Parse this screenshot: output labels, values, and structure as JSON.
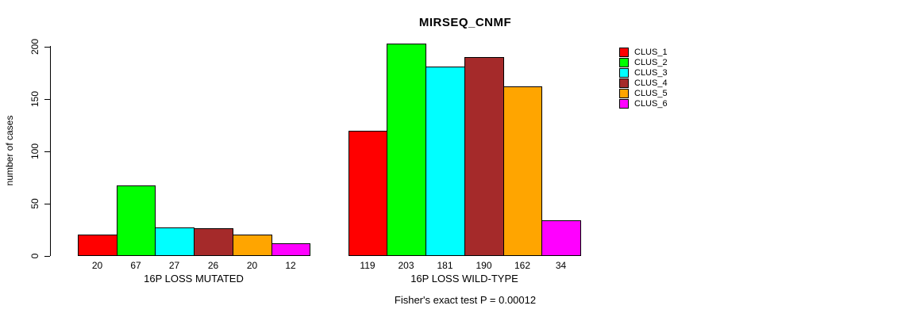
{
  "chart_data": {
    "type": "bar",
    "title": "MIRSEQ_CNMF",
    "ylabel": "number of cases",
    "ylim": [
      0,
      200
    ],
    "yticks": [
      0,
      50,
      100,
      150,
      200
    ],
    "grid": false,
    "legend_position": "top-right",
    "categories": [
      "16P LOSS MUTATED",
      "16P LOSS WILD-TYPE"
    ],
    "series": [
      {
        "name": "CLUS_1",
        "color": "#FF0000",
        "values": [
          20,
          119
        ]
      },
      {
        "name": "CLUS_2",
        "color": "#00FF00",
        "values": [
          67,
          203
        ]
      },
      {
        "name": "CLUS_3",
        "color": "#00FFFF",
        "values": [
          27,
          181
        ]
      },
      {
        "name": "CLUS_4",
        "color": "#A52A2A",
        "values": [
          26,
          190
        ]
      },
      {
        "name": "CLUS_5",
        "color": "#FFA500",
        "values": [
          20,
          162
        ]
      },
      {
        "name": "CLUS_6",
        "color": "#FF00FF",
        "values": [
          12,
          34
        ]
      }
    ],
    "footer": "Fisher's exact test P = 0.00012"
  },
  "colors": {
    "background": "#FFFFFF",
    "axis": "#000000",
    "text": "#000000"
  }
}
